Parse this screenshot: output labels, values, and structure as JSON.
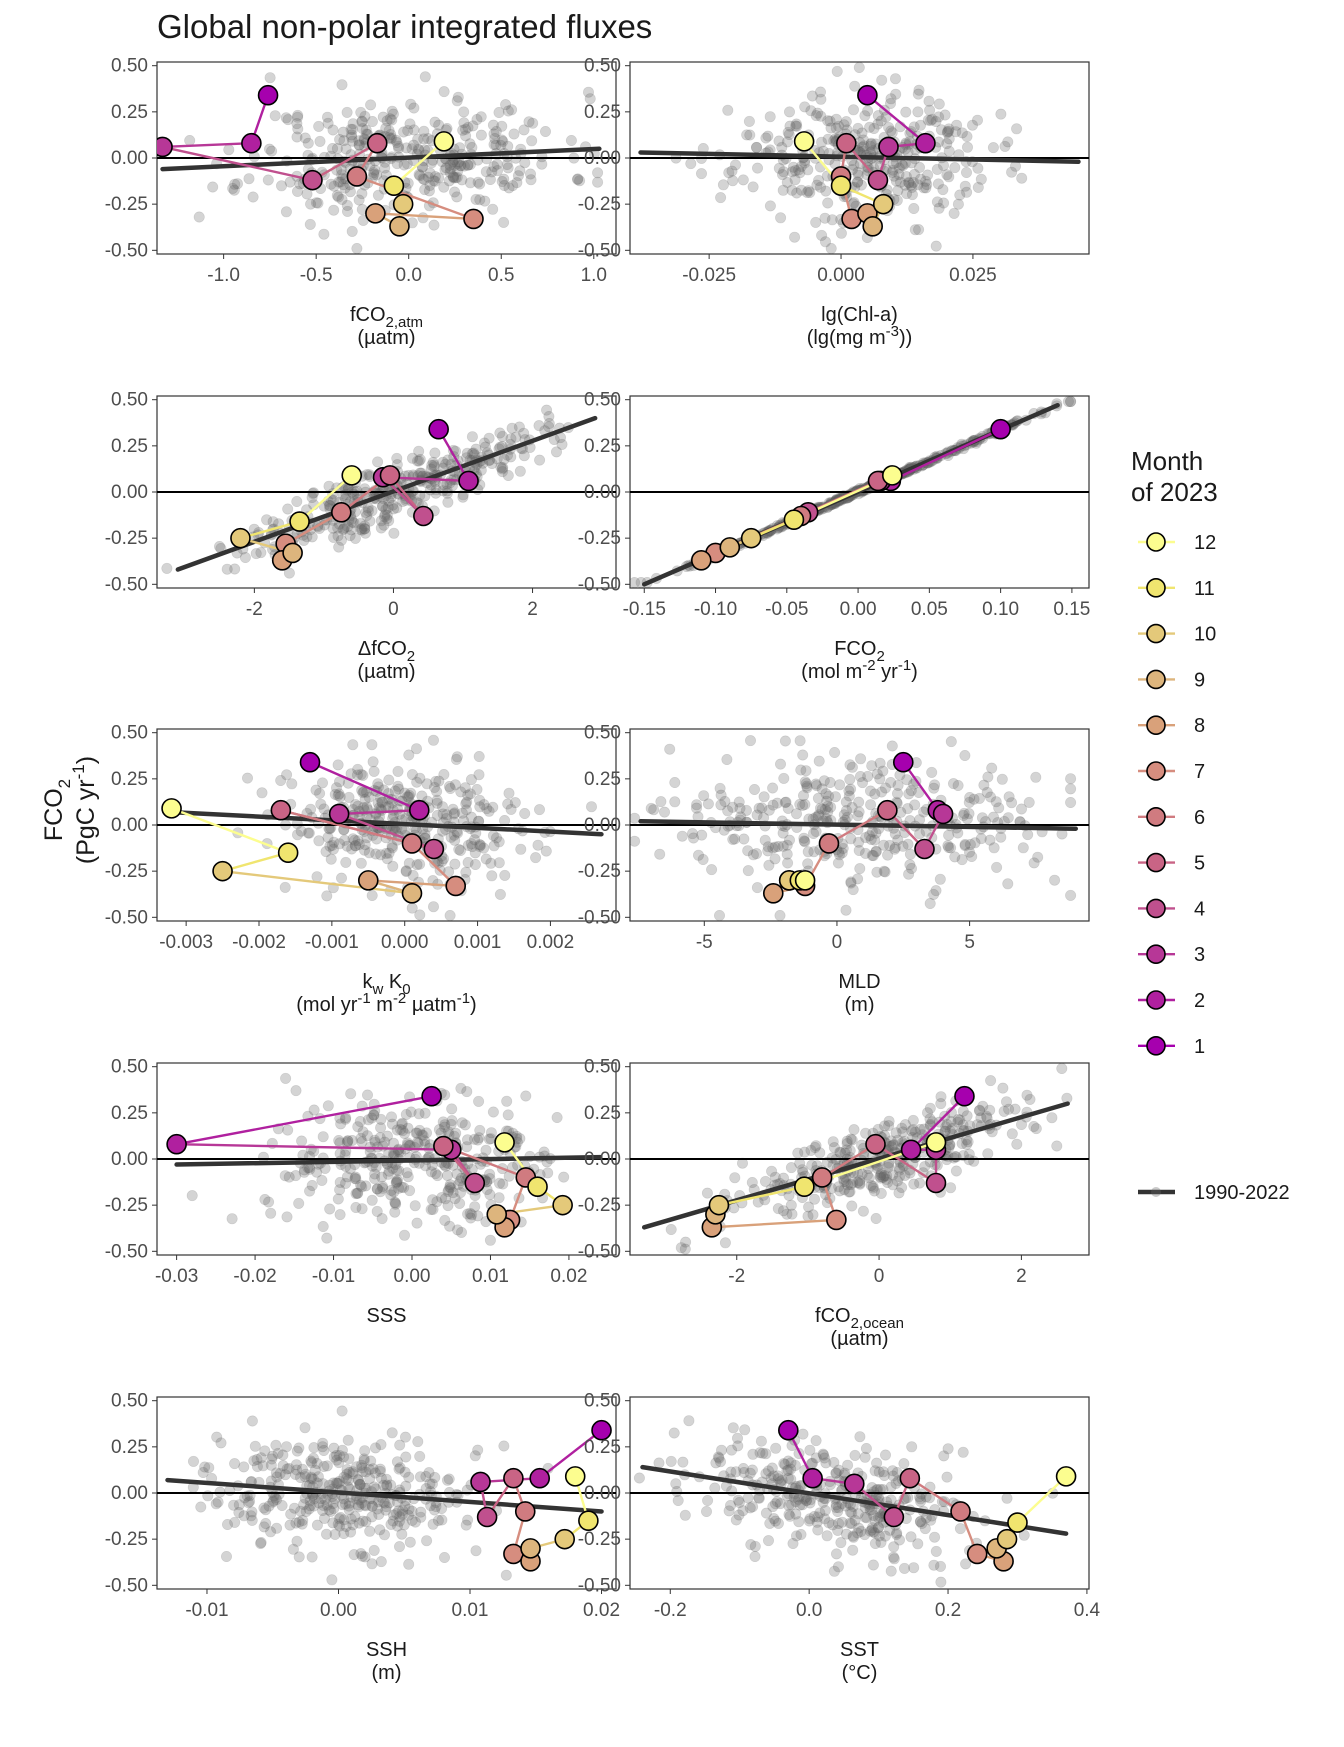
{
  "chart_data": {
    "type": "scatter",
    "title": "Global non-polar integrated fluxes",
    "y_axis_label": [
      "FCO",
      "2",
      "(PgC yr",
      "-1",
      ")"
    ],
    "y_range": [
      -0.52,
      0.52
    ],
    "y_ticks": [
      "0.50",
      "0.25",
      "0.00",
      "-0.25",
      "-0.50"
    ],
    "y_tick_values": [
      0.5,
      0.25,
      0,
      -0.25,
      -0.5
    ],
    "legend": {
      "title_line1": "Month",
      "title_line2": "of 2023",
      "months": [
        {
          "label": "12",
          "color": "#FCFD8F"
        },
        {
          "label": "11",
          "color": "#F0E56F"
        },
        {
          "label": "10",
          "color": "#E4C97A"
        },
        {
          "label": "9",
          "color": "#DDB57D"
        },
        {
          "label": "8",
          "color": "#D9A17A"
        },
        {
          "label": "7",
          "color": "#D68D7F"
        },
        {
          "label": "6",
          "color": "#D07B80"
        },
        {
          "label": "5",
          "color": "#C96485"
        },
        {
          "label": "4",
          "color": "#C0508E"
        },
        {
          "label": "3",
          "color": "#B73797"
        },
        {
          "label": "2",
          "color": "#B0209F"
        },
        {
          "label": "1",
          "color": "#A600AE"
        }
      ],
      "trend_label": "1990-2022",
      "trend_color": "#333333"
    },
    "panels": [
      {
        "id": "fco2-atm",
        "xlabel_parts": [
          [
            "fCO",
            ""
          ],
          [
            "2,atm",
            "sub"
          ]
        ],
        "xunit_parts": [
          [
            "(µatm)",
            ""
          ]
        ],
        "xlim": [
          -1.36,
          1.12
        ],
        "xticks": [
          -1.0,
          -0.5,
          0.0,
          0.5,
          1.0
        ],
        "xtick_labels": [
          "-1.0",
          "-0.5",
          "0.0",
          "0.5",
          "1.0"
        ],
        "trend": {
          "x": [
            -1.33,
            1.03
          ],
          "y": [
            -0.06,
            0.05
          ]
        },
        "cloud": {
          "seed": 11,
          "xc": 0.0,
          "xs": 0.42,
          "slope": 0.04,
          "ys": 0.16
        },
        "months_2023": {
          "x": [
            -0.76,
            -0.85,
            -1.33,
            -0.52,
            -0.17,
            -0.28,
            0.35,
            -0.18,
            -0.05,
            -0.03,
            -0.08,
            0.19
          ],
          "y": [
            0.34,
            0.08,
            0.06,
            -0.12,
            0.08,
            -0.1,
            -0.33,
            -0.3,
            -0.37,
            -0.25,
            -0.15,
            0.09
          ]
        }
      },
      {
        "id": "chl-a",
        "xlabel_parts": [
          [
            "lg(Chl-a)",
            ""
          ]
        ],
        "xunit_parts": [
          [
            "(lg(mg m",
            ""
          ],
          [
            "-3",
            "sup"
          ],
          [
            "))",
            ""
          ]
        ],
        "xlim": [
          -0.04,
          0.047
        ],
        "xticks": [
          -0.025,
          0.0,
          0.025
        ],
        "xtick_labels": [
          "-0.025",
          "0.000",
          "0.025"
        ],
        "trend": {
          "x": [
            -0.038,
            0.045
          ],
          "y": [
            0.03,
            -0.02
          ]
        },
        "cloud": {
          "seed": 23,
          "xc": 0.004,
          "xs": 0.012,
          "slope": -0.5,
          "ys": 0.17
        },
        "months_2023": {
          "x": [
            0.005,
            0.016,
            0.009,
            0.007,
            0.001,
            0.0,
            0.002,
            0.005,
            0.006,
            0.008,
            0.0,
            -0.007
          ],
          "y": [
            0.34,
            0.08,
            0.06,
            -0.12,
            0.08,
            -0.1,
            -0.33,
            -0.3,
            -0.37,
            -0.25,
            -0.15,
            0.09
          ]
        }
      },
      {
        "id": "delta-fco2",
        "xlabel_parts": [
          [
            "ΔfCO",
            ""
          ],
          [
            "2",
            "sub"
          ]
        ],
        "xunit_parts": [
          [
            "(µatm)",
            ""
          ]
        ],
        "xlim": [
          -3.4,
          3.2
        ],
        "xticks": [
          -2,
          0,
          2
        ],
        "xtick_labels": [
          "-2",
          "0",
          "2"
        ],
        "trend": {
          "x": [
            -3.1,
            2.9
          ],
          "y": [
            -0.42,
            0.4
          ]
        },
        "cloud": {
          "seed": 37,
          "xc": 0.0,
          "xs": 1.05,
          "slope": 0.137,
          "ys": 0.08
        },
        "months_2023": {
          "x": [
            0.65,
            1.08,
            -0.15,
            0.43,
            -0.05,
            -0.75,
            -1.55,
            -1.6,
            -1.45,
            -2.2,
            -1.35,
            -0.6
          ],
          "y": [
            0.34,
            0.06,
            0.08,
            -0.13,
            0.09,
            -0.11,
            -0.28,
            -0.37,
            -0.33,
            -0.25,
            -0.16,
            0.09
          ]
        }
      },
      {
        "id": "fco2-flux",
        "xlabel_parts": [
          [
            "FCO",
            ""
          ],
          [
            "2",
            "sub"
          ]
        ],
        "xunit_parts": [
          [
            "(mol m",
            ""
          ],
          [
            "-2",
            "sup"
          ],
          [
            " yr",
            ""
          ],
          [
            "-1",
            "sup"
          ],
          [
            ")",
            ""
          ]
        ],
        "xlim": [
          -0.16,
          0.162
        ],
        "xticks": [
          -0.15,
          -0.1,
          -0.05,
          0.0,
          0.05,
          0.1,
          0.15
        ],
        "xtick_labels": [
          "-0.15",
          "-0.10",
          "-0.05",
          "0.00",
          "0.05",
          "0.10",
          "0.15"
        ],
        "trend": {
          "x": [
            -0.15,
            0.14
          ],
          "y": [
            -0.5,
            0.47
          ]
        },
        "cloud": {
          "seed": 41,
          "xc": 0.0,
          "xs": 0.065,
          "slope": 3.37,
          "ys": 0.006
        },
        "months_2023": {
          "x": [
            0.1,
            0.023,
            0.016,
            -0.035,
            0.014,
            -0.04,
            -0.1,
            -0.11,
            -0.09,
            -0.075,
            -0.045,
            0.024
          ],
          "y": [
            0.34,
            0.06,
            0.06,
            -0.11,
            0.06,
            -0.13,
            -0.33,
            -0.37,
            -0.3,
            -0.25,
            -0.15,
            0.09
          ]
        }
      },
      {
        "id": "kw-k0",
        "xlabel_parts": [
          [
            "k",
            ""
          ],
          [
            "w",
            "sub"
          ],
          [
            " K",
            ""
          ],
          [
            "0",
            "sub"
          ]
        ],
        "xunit_parts": [
          [
            "(mol yr",
            ""
          ],
          [
            "-1",
            "sup"
          ],
          [
            " m",
            ""
          ],
          [
            "-2",
            "sup"
          ],
          [
            " µatm",
            ""
          ],
          [
            "-1",
            "sup"
          ],
          [
            ")",
            ""
          ]
        ],
        "xlim": [
          -0.0034,
          0.0029
        ],
        "xticks": [
          -0.003,
          -0.002,
          -0.001,
          0.0,
          0.001,
          0.002
        ],
        "xtick_labels": [
          "-0.003",
          "-0.002",
          "-0.001",
          "0.000",
          "0.001",
          "0.002"
        ],
        "trend": {
          "x": [
            -0.0032,
            0.0027
          ],
          "y": [
            0.07,
            -0.05
          ]
        },
        "cloud": {
          "seed": 53,
          "xc": 0.0001,
          "xs": 0.0009,
          "slope": -20,
          "ys": 0.17
        },
        "months_2023": {
          "x": [
            -0.0013,
            0.0002,
            -0.0009,
            0.0004,
            -0.0017,
            0.0001,
            0.0007,
            -0.0005,
            0.0001,
            -0.0025,
            -0.0016,
            -0.0032
          ],
          "y": [
            0.34,
            0.08,
            0.06,
            -0.13,
            0.08,
            -0.1,
            -0.33,
            -0.3,
            -0.37,
            -0.25,
            -0.15,
            0.09
          ]
        }
      },
      {
        "id": "mld",
        "xlabel_parts": [
          [
            "MLD",
            ""
          ]
        ],
        "xunit_parts": [
          [
            "(m)",
            ""
          ]
        ],
        "xlim": [
          -7.8,
          9.5
        ],
        "xticks": [
          -5,
          0,
          5
        ],
        "xtick_labels": [
          "-5",
          "0",
          "5"
        ],
        "trend": {
          "x": [
            -7.4,
            9.0
          ],
          "y": [
            0.02,
            -0.02
          ]
        },
        "cloud": {
          "seed": 67,
          "xc": 0.5,
          "xs": 3.3,
          "slope": -0.002,
          "ys": 0.17
        },
        "months_2023": {
          "x": [
            2.5,
            3.8,
            4.0,
            3.3,
            1.9,
            -0.3,
            -1.2,
            -2.4,
            -1.8,
            -1.8,
            -1.4,
            -1.2
          ],
          "y": [
            0.34,
            0.08,
            0.06,
            -0.13,
            0.08,
            -0.1,
            -0.33,
            -0.37,
            -0.3,
            -0.3,
            -0.3,
            -0.3
          ]
        }
      },
      {
        "id": "sss",
        "xlabel_parts": [
          [
            "SSS",
            ""
          ]
        ],
        "xunit_parts": [],
        "xlim": [
          -0.0325,
          0.026
        ],
        "xticks": [
          -0.03,
          -0.02,
          -0.01,
          0.0,
          0.01,
          0.02
        ],
        "xtick_labels": [
          "-0.03",
          "-0.02",
          "-0.01",
          "0.00",
          "0.01",
          "0.02"
        ],
        "trend": {
          "x": [
            -0.03,
            0.024
          ],
          "y": [
            -0.03,
            0.01
          ]
        },
        "cloud": {
          "seed": 79,
          "xc": 0.0,
          "xs": 0.009,
          "slope": 0.8,
          "ys": 0.17
        },
        "months_2023": {
          "x": [
            0.0025,
            -0.03,
            0.005,
            0.008,
            0.004,
            0.0145,
            0.0125,
            0.0118,
            0.0108,
            0.0192,
            0.016,
            0.0118
          ],
          "y": [
            0.34,
            0.08,
            0.05,
            -0.13,
            0.07,
            -0.1,
            -0.33,
            -0.37,
            -0.3,
            -0.25,
            -0.15,
            0.09
          ]
        }
      },
      {
        "id": "fco2-ocean",
        "xlabel_parts": [
          [
            "fCO",
            ""
          ],
          [
            "2,ocean",
            "sub"
          ]
        ],
        "xunit_parts": [
          [
            "(µatm)",
            ""
          ]
        ],
        "xlim": [
          -3.5,
          2.95
        ],
        "xticks": [
          -2,
          0,
          2
        ],
        "xtick_labels": [
          "-2",
          "0",
          "2"
        ],
        "trend": {
          "x": [
            -3.3,
            2.65
          ],
          "y": [
            -0.37,
            0.3
          ]
        },
        "cloud": {
          "seed": 83,
          "xc": 0.0,
          "xs": 1.05,
          "slope": 0.113,
          "ys": 0.1
        },
        "months_2023": {
          "x": [
            1.2,
            0.45,
            0.8,
            0.8,
            -0.05,
            -0.8,
            -0.6,
            -2.35,
            -2.3,
            -2.25,
            -1.05,
            0.8
          ],
          "y": [
            0.34,
            0.05,
            0.05,
            -0.13,
            0.08,
            -0.1,
            -0.33,
            -0.37,
            -0.3,
            -0.25,
            -0.15,
            0.09
          ]
        }
      },
      {
        "id": "ssh",
        "xlabel_parts": [
          [
            "SSH",
            ""
          ]
        ],
        "xunit_parts": [
          [
            "(m)",
            ""
          ]
        ],
        "xlim": [
          -0.0138,
          0.0211
        ],
        "xticks": [
          -0.01,
          0.0,
          0.01,
          0.02
        ],
        "xtick_labels": [
          "-0.01",
          "0.00",
          "0.01",
          "0.02"
        ],
        "trend": {
          "x": [
            -0.013,
            0.02
          ],
          "y": [
            0.07,
            -0.1
          ]
        },
        "cloud": {
          "seed": 97,
          "xc": 0.0,
          "xs": 0.0052,
          "slope": -5,
          "ys": 0.16
        },
        "months_2023": {
          "x": [
            0.02,
            0.0153,
            0.0108,
            0.0113,
            0.0133,
            0.0142,
            0.0133,
            0.0146,
            0.0146,
            0.0172,
            0.019,
            0.018
          ],
          "y": [
            0.34,
            0.08,
            0.06,
            -0.13,
            0.08,
            -0.1,
            -0.33,
            -0.37,
            -0.3,
            -0.25,
            -0.15,
            0.09
          ]
        }
      },
      {
        "id": "sst",
        "xlabel_parts": [
          [
            "SST",
            ""
          ]
        ],
        "xunit_parts": [
          [
            "(°C)",
            ""
          ]
        ],
        "xlim": [
          -0.258,
          0.403
        ],
        "xticks": [
          -0.2,
          0.0,
          0.2,
          0.4
        ],
        "xtick_labels": [
          "-0.2",
          "0.0",
          "0.2",
          "0.4"
        ],
        "trend": {
          "x": [
            -0.24,
            0.37
          ],
          "y": [
            0.14,
            -0.22
          ]
        },
        "cloud": {
          "seed": 101,
          "xc": 0.03,
          "xs": 0.1,
          "slope": -0.55,
          "ys": 0.15
        },
        "months_2023": {
          "x": [
            -0.03,
            0.005,
            0.065,
            0.122,
            0.145,
            0.218,
            0.242,
            0.28,
            0.27,
            0.285,
            0.3,
            0.37
          ],
          "y": [
            0.34,
            0.08,
            0.05,
            -0.13,
            0.08,
            -0.1,
            -0.33,
            -0.37,
            -0.3,
            -0.25,
            -0.16,
            0.09
          ]
        }
      }
    ]
  }
}
